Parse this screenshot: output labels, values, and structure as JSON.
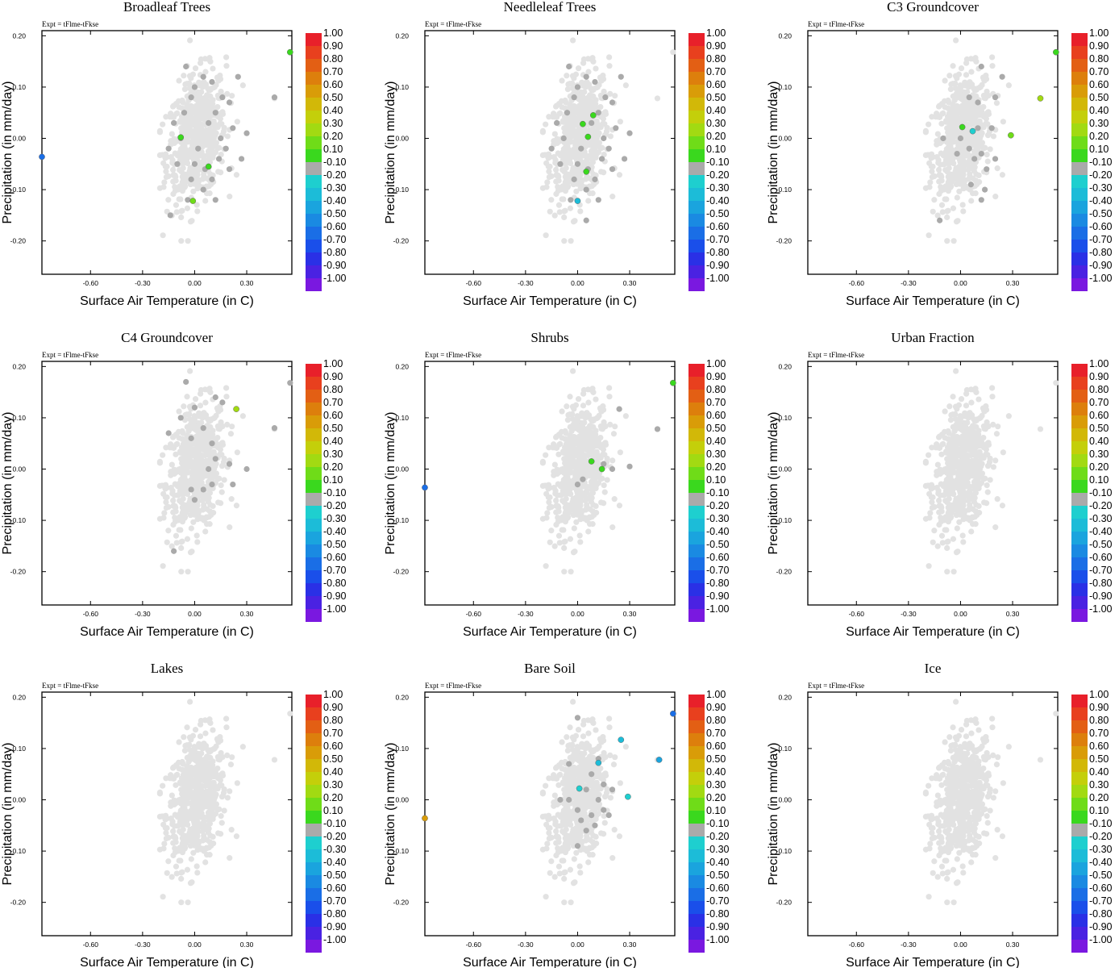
{
  "chart_data": {
    "type": "scatter",
    "shared": {
      "expt_label": "Expt = tFlme-tFkse",
      "xlabel": "Surface Air Temperature (in C)",
      "ylabel": "Precipitation (in mm/day)",
      "xlim": [
        -0.88,
        0.56
      ],
      "ylim": [
        -0.265,
        0.21
      ],
      "xticks": [
        -0.6,
        -0.3,
        0.0,
        0.3
      ],
      "xtick_labels": [
        "-0.60",
        "-0.30",
        "0.00",
        "0.30"
      ],
      "yticks": [
        -0.2,
        -0.1,
        0.0,
        0.1,
        0.2
      ],
      "ytick_labels": [
        "-0.20",
        "-0.10",
        "0.00",
        "0.10",
        "0.20"
      ],
      "colorbar_labels": [
        "1.00",
        "0.90",
        "0.80",
        "0.70",
        "0.60",
        "0.50",
        "0.40",
        "0.30",
        "0.20",
        "0.10",
        "-0.10",
        "-0.20",
        "-0.30",
        "-0.40",
        "-0.50",
        "-0.60",
        "-0.70",
        "-0.80",
        "-0.90",
        "-1.00"
      ],
      "colorbar_colors": [
        "#e8202a",
        "#e8401e",
        "#e35f14",
        "#dd7f0c",
        "#d99c08",
        "#d2b808",
        "#c4cf0a",
        "#a2da12",
        "#6fdc18",
        "#3ad81e",
        "#aaaaaa",
        "#1ecfcf",
        "#1cbcd8",
        "#1aa4de",
        "#1a8ae2",
        "#1a6ee6",
        "#1a4fea",
        "#2a30e6",
        "#4a22e2",
        "#7a18e0"
      ],
      "background_cloud_color": "#e2e2e2",
      "mid_category_color": "#aaaaaa"
    },
    "panels": [
      {
        "title": "Broadleaf Trees",
        "gray_points": [
          [
            -0.02,
            0.08
          ],
          [
            0.12,
            0.05
          ],
          [
            0.05,
            0.12
          ],
          [
            -0.05,
            0.14
          ],
          [
            0.0,
            0.1
          ],
          [
            0.1,
            0.11
          ],
          [
            0.2,
            0.07
          ],
          [
            0.25,
            0.12
          ],
          [
            0.15,
            0.0
          ],
          [
            0.18,
            -0.02
          ],
          [
            0.22,
            0.02
          ],
          [
            -0.1,
            -0.05
          ],
          [
            -0.02,
            -0.08
          ],
          [
            0.0,
            -0.05
          ],
          [
            0.05,
            -0.1
          ],
          [
            0.1,
            -0.08
          ],
          [
            0.14,
            -0.04
          ],
          [
            0.06,
            -0.06
          ],
          [
            -0.06,
            0.05
          ],
          [
            -0.12,
            0.03
          ],
          [
            0.3,
            0.01
          ],
          [
            0.27,
            -0.04
          ],
          [
            -0.08,
            0.0
          ],
          [
            0.08,
            0.03
          ],
          [
            0.02,
            -0.02
          ],
          [
            -0.04,
            -0.12
          ],
          [
            0.12,
            -0.12
          ],
          [
            0.2,
            -0.06
          ],
          [
            -0.15,
            -0.02
          ],
          [
            0.16,
            0.08
          ],
          [
            -0.14,
            -0.15
          ],
          [
            0.46,
            0.08
          ]
        ],
        "colored_points": [
          {
            "x": 0.55,
            "y": 0.168,
            "value": 0.1
          },
          {
            "x": -0.08,
            "y": 0.002,
            "value": 0.1
          },
          {
            "x": 0.08,
            "y": -0.055,
            "value": 0.1
          },
          {
            "x": -0.01,
            "y": -0.122,
            "value": 0.15
          },
          {
            "x": -0.88,
            "y": -0.036,
            "value": -0.55
          }
        ]
      },
      {
        "title": "Needleleaf Trees",
        "gray_points": [
          [
            -0.02,
            0.08
          ],
          [
            0.12,
            0.05
          ],
          [
            0.05,
            0.12
          ],
          [
            -0.05,
            0.14
          ],
          [
            0.0,
            0.1
          ],
          [
            0.1,
            0.11
          ],
          [
            0.2,
            0.07
          ],
          [
            0.25,
            0.12
          ],
          [
            0.15,
            0.0
          ],
          [
            0.18,
            -0.02
          ],
          [
            0.22,
            0.02
          ],
          [
            -0.1,
            -0.05
          ],
          [
            -0.02,
            -0.08
          ],
          [
            0.0,
            -0.05
          ],
          [
            0.05,
            -0.1
          ],
          [
            0.1,
            -0.08
          ],
          [
            0.14,
            -0.04
          ],
          [
            0.06,
            -0.06
          ],
          [
            -0.06,
            0.05
          ],
          [
            -0.12,
            0.03
          ],
          [
            0.3,
            0.01
          ],
          [
            0.27,
            -0.04
          ],
          [
            -0.08,
            0.0
          ],
          [
            0.08,
            0.03
          ],
          [
            0.02,
            -0.02
          ],
          [
            -0.04,
            -0.12
          ],
          [
            0.12,
            -0.12
          ],
          [
            0.2,
            -0.06
          ],
          [
            -0.15,
            -0.02
          ],
          [
            0.16,
            0.08
          ],
          [
            0.05,
            -0.16
          ]
        ],
        "colored_points": [
          {
            "x": 0.09,
            "y": 0.045,
            "value": 0.1
          },
          {
            "x": 0.03,
            "y": 0.028,
            "value": 0.1
          },
          {
            "x": 0.06,
            "y": 0.003,
            "value": 0.1
          },
          {
            "x": 0.05,
            "y": -0.065,
            "value": 0.1
          },
          {
            "x": 0.0,
            "y": -0.122,
            "value": -0.25
          }
        ]
      },
      {
        "title": "C3 Groundcover",
        "gray_points": [
          [
            0.12,
            0.14
          ],
          [
            0.2,
            0.08
          ],
          [
            0.24,
            0.12
          ],
          [
            0.1,
            0.07
          ],
          [
            0.05,
            0.08
          ],
          [
            0.0,
            0.0
          ],
          [
            0.05,
            -0.02
          ],
          [
            0.08,
            -0.04
          ],
          [
            0.12,
            -0.03
          ],
          [
            0.15,
            -0.06
          ],
          [
            0.06,
            -0.09
          ],
          [
            0.18,
            0.02
          ],
          [
            -0.1,
            0.0
          ],
          [
            -0.02,
            -0.03
          ],
          [
            0.1,
            0.02
          ],
          [
            0.14,
            -0.1
          ],
          [
            0.12,
            -0.12
          ],
          [
            -0.12,
            -0.16
          ],
          [
            0.2,
            -0.04
          ]
        ],
        "colored_points": [
          {
            "x": 0.55,
            "y": 0.168,
            "value": 0.1
          },
          {
            "x": 0.46,
            "y": 0.078,
            "value": 0.25
          },
          {
            "x": 0.01,
            "y": 0.022,
            "value": 0.1
          },
          {
            "x": 0.29,
            "y": 0.006,
            "value": 0.15
          },
          {
            "x": 0.07,
            "y": 0.014,
            "value": -0.2
          }
        ]
      },
      {
        "title": "C4 Groundcover",
        "gray_points": [
          [
            -0.05,
            0.17
          ],
          [
            0.12,
            0.14
          ],
          [
            0.16,
            0.13
          ],
          [
            -0.08,
            0.1
          ],
          [
            0.0,
            0.12
          ],
          [
            0.05,
            0.08
          ],
          [
            -0.15,
            0.07
          ],
          [
            -0.02,
            0.06
          ],
          [
            0.1,
            0.05
          ],
          [
            0.12,
            0.02
          ],
          [
            0.1,
            -0.03
          ],
          [
            0.05,
            -0.04
          ],
          [
            0.08,
            0.0
          ],
          [
            -0.02,
            -0.04
          ],
          [
            0.0,
            -0.06
          ],
          [
            0.2,
            0.01
          ],
          [
            0.3,
            0.0
          ],
          [
            -0.12,
            -0.16
          ],
          [
            0.46,
            0.08
          ],
          [
            0.55,
            0.168
          ],
          [
            0.22,
            -0.03
          ]
        ],
        "colored_points": [
          {
            "x": 0.24,
            "y": 0.117,
            "value": 0.25
          }
        ]
      },
      {
        "title": "Shrubs",
        "gray_points": [
          [
            0.24,
            0.117
          ],
          [
            0.46,
            0.078
          ],
          [
            0.0,
            -0.03
          ],
          [
            0.03,
            -0.02
          ],
          [
            0.2,
            0.0
          ],
          [
            0.15,
            0.01
          ],
          [
            0.3,
            0.005
          ]
        ],
        "colored_points": [
          {
            "x": 0.55,
            "y": 0.168,
            "value": 0.1
          },
          {
            "x": 0.08,
            "y": 0.015,
            "value": 0.1
          },
          {
            "x": 0.14,
            "y": 0.0,
            "value": 0.1
          },
          {
            "x": -0.88,
            "y": -0.036,
            "value": -0.55
          }
        ]
      },
      {
        "title": "Urban Fraction",
        "gray_points": [],
        "colored_points": []
      },
      {
        "title": "Lakes",
        "gray_points": [],
        "colored_points": []
      },
      {
        "title": "Bare Soil",
        "gray_points": [
          [
            0.0,
            0.16
          ],
          [
            0.12,
            0.08
          ],
          [
            -0.05,
            0.07
          ],
          [
            0.08,
            0.05
          ],
          [
            0.05,
            0.02
          ],
          [
            0.0,
            -0.02
          ],
          [
            0.02,
            -0.04
          ],
          [
            0.08,
            -0.03
          ],
          [
            0.12,
            0.0
          ],
          [
            0.15,
            -0.02
          ],
          [
            0.1,
            -0.05
          ],
          [
            0.05,
            -0.06
          ],
          [
            0.0,
            -0.09
          ],
          [
            -0.05,
            0.0
          ],
          [
            0.15,
            0.03
          ],
          [
            0.18,
            -0.03
          ],
          [
            0.2,
            0.02
          ],
          [
            -0.1,
            0.0
          ]
        ],
        "colored_points": [
          {
            "x": 0.55,
            "y": 0.168,
            "value": -0.55
          },
          {
            "x": 0.25,
            "y": 0.117,
            "value": -0.25
          },
          {
            "x": 0.47,
            "y": 0.078,
            "value": -0.35
          },
          {
            "x": 0.12,
            "y": 0.072,
            "value": -0.25
          },
          {
            "x": 0.01,
            "y": 0.022,
            "value": -0.2
          },
          {
            "x": 0.29,
            "y": 0.006,
            "value": -0.2
          },
          {
            "x": -0.88,
            "y": -0.036,
            "value": 0.6
          }
        ]
      },
      {
        "title": "Ice",
        "gray_points": [],
        "colored_points": []
      }
    ]
  }
}
